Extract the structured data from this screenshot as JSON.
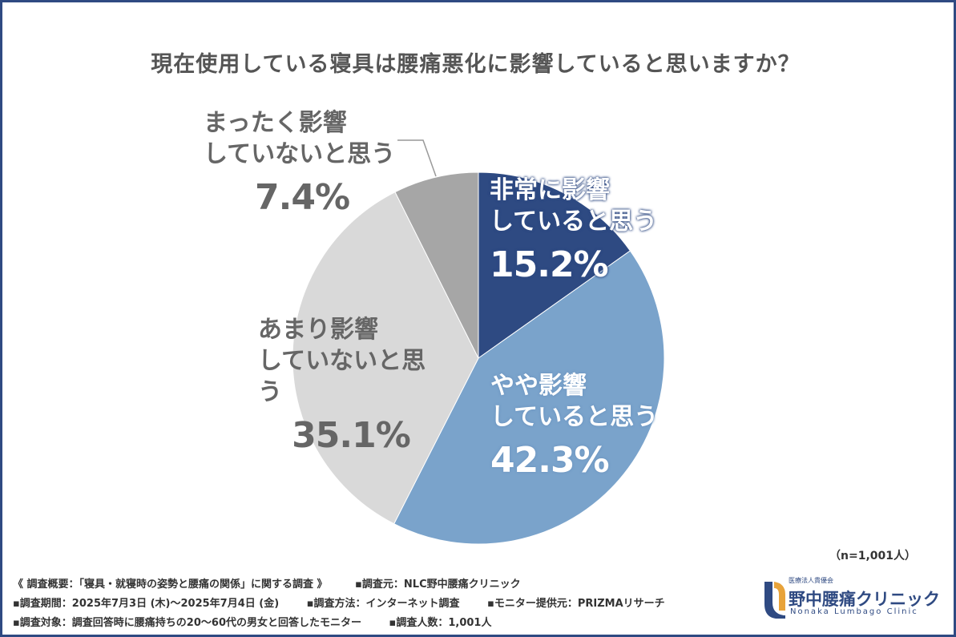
{
  "title": "現在使用している寝具は腰痛悪化に影響していると思いますか？",
  "chart_data": {
    "type": "pie",
    "start_angle_deg": 0,
    "direction": "clockwise",
    "slices": [
      {
        "label_line1": "非常に影響",
        "label_line2": "していると思う",
        "value": 15.2,
        "value_text": "15.2%",
        "color": "#2e4a82"
      },
      {
        "label_line1": "やや影響",
        "label_line2": "していると思う",
        "value": 42.3,
        "value_text": "42.3%",
        "color": "#7aa3cb"
      },
      {
        "label_line1": "あまり影響",
        "label_line2": "していないと思う",
        "value": 35.1,
        "value_text": "35.1%",
        "color": "#d9d9d9"
      },
      {
        "label_line1": "まったく影響",
        "label_line2": "していないと思う",
        "value": 7.4,
        "value_text": "7.4%",
        "color": "#a6a6a6"
      }
    ]
  },
  "n_label": "（n=1,001人）",
  "footer": {
    "row1_a": "《 調査概要：「寝具・就寝時の姿勢と腰痛の関係」に関する調査 》",
    "row1_b": "▪調査元：NLC野中腰痛クリニック",
    "row2_a": "▪調査期間：2025年7月3日 (木)〜2025年7月4日 (金)",
    "row2_b": "▪調査方法：インターネット調査",
    "row2_c": "▪モニター提供元：PRIZMAリサーチ",
    "row3_a": "▪調査対象：調査回答時に腰痛持ちの20〜60代の男女と回答したモニター",
    "row3_b": "▪調査人数：1,001人"
  },
  "logo": {
    "sub": "医療法人貴優会",
    "name": "野中腰痛クリニック",
    "en": "Nonaka Lumbago Clinic",
    "color": "#2f4a82",
    "accent": "#e8a33a"
  }
}
